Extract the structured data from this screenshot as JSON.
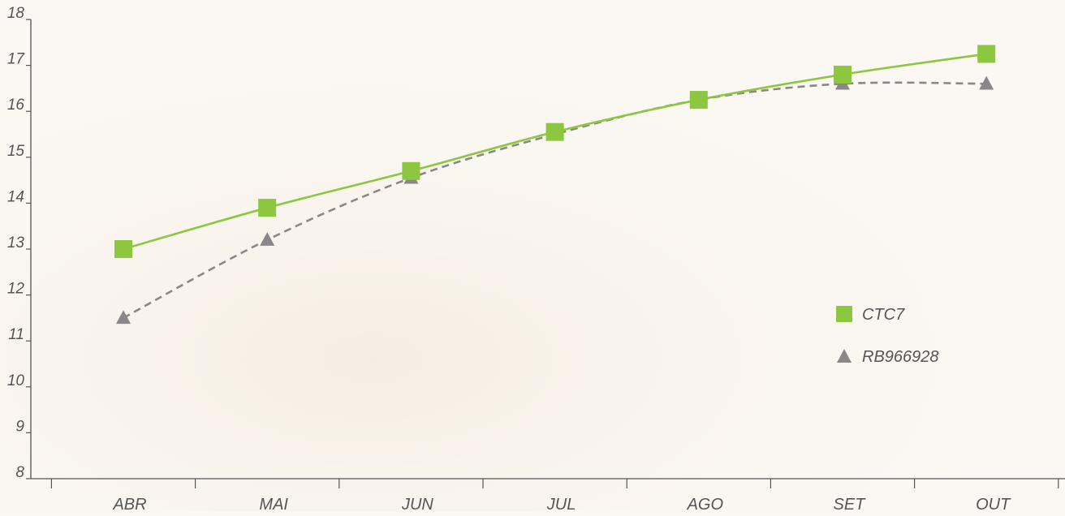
{
  "chart_data": {
    "type": "line",
    "categories": [
      "ABR",
      "MAI",
      "JUN",
      "JUL",
      "AGO",
      "SET",
      "OUT"
    ],
    "ylim": [
      8,
      18
    ],
    "y_ticks": [
      8,
      9,
      10,
      11,
      12,
      13,
      14,
      15,
      16,
      17,
      18
    ],
    "grid": false,
    "legend_position": "right",
    "series": [
      {
        "name": "CTC7",
        "values": [
          13.0,
          13.9,
          14.7,
          15.55,
          16.25,
          16.8,
          17.25
        ],
        "color": "#8dc63f",
        "marker": "square",
        "line_style": "solid"
      },
      {
        "name": "RB966928",
        "values": [
          11.5,
          13.2,
          14.55,
          15.5,
          16.25,
          16.6,
          16.6
        ],
        "color": "#8a8786",
        "marker": "triangle",
        "line_style": "dashed"
      }
    ]
  },
  "colors": {
    "axis": "#555555",
    "label": "#555555",
    "background": "#fbf8f3"
  }
}
